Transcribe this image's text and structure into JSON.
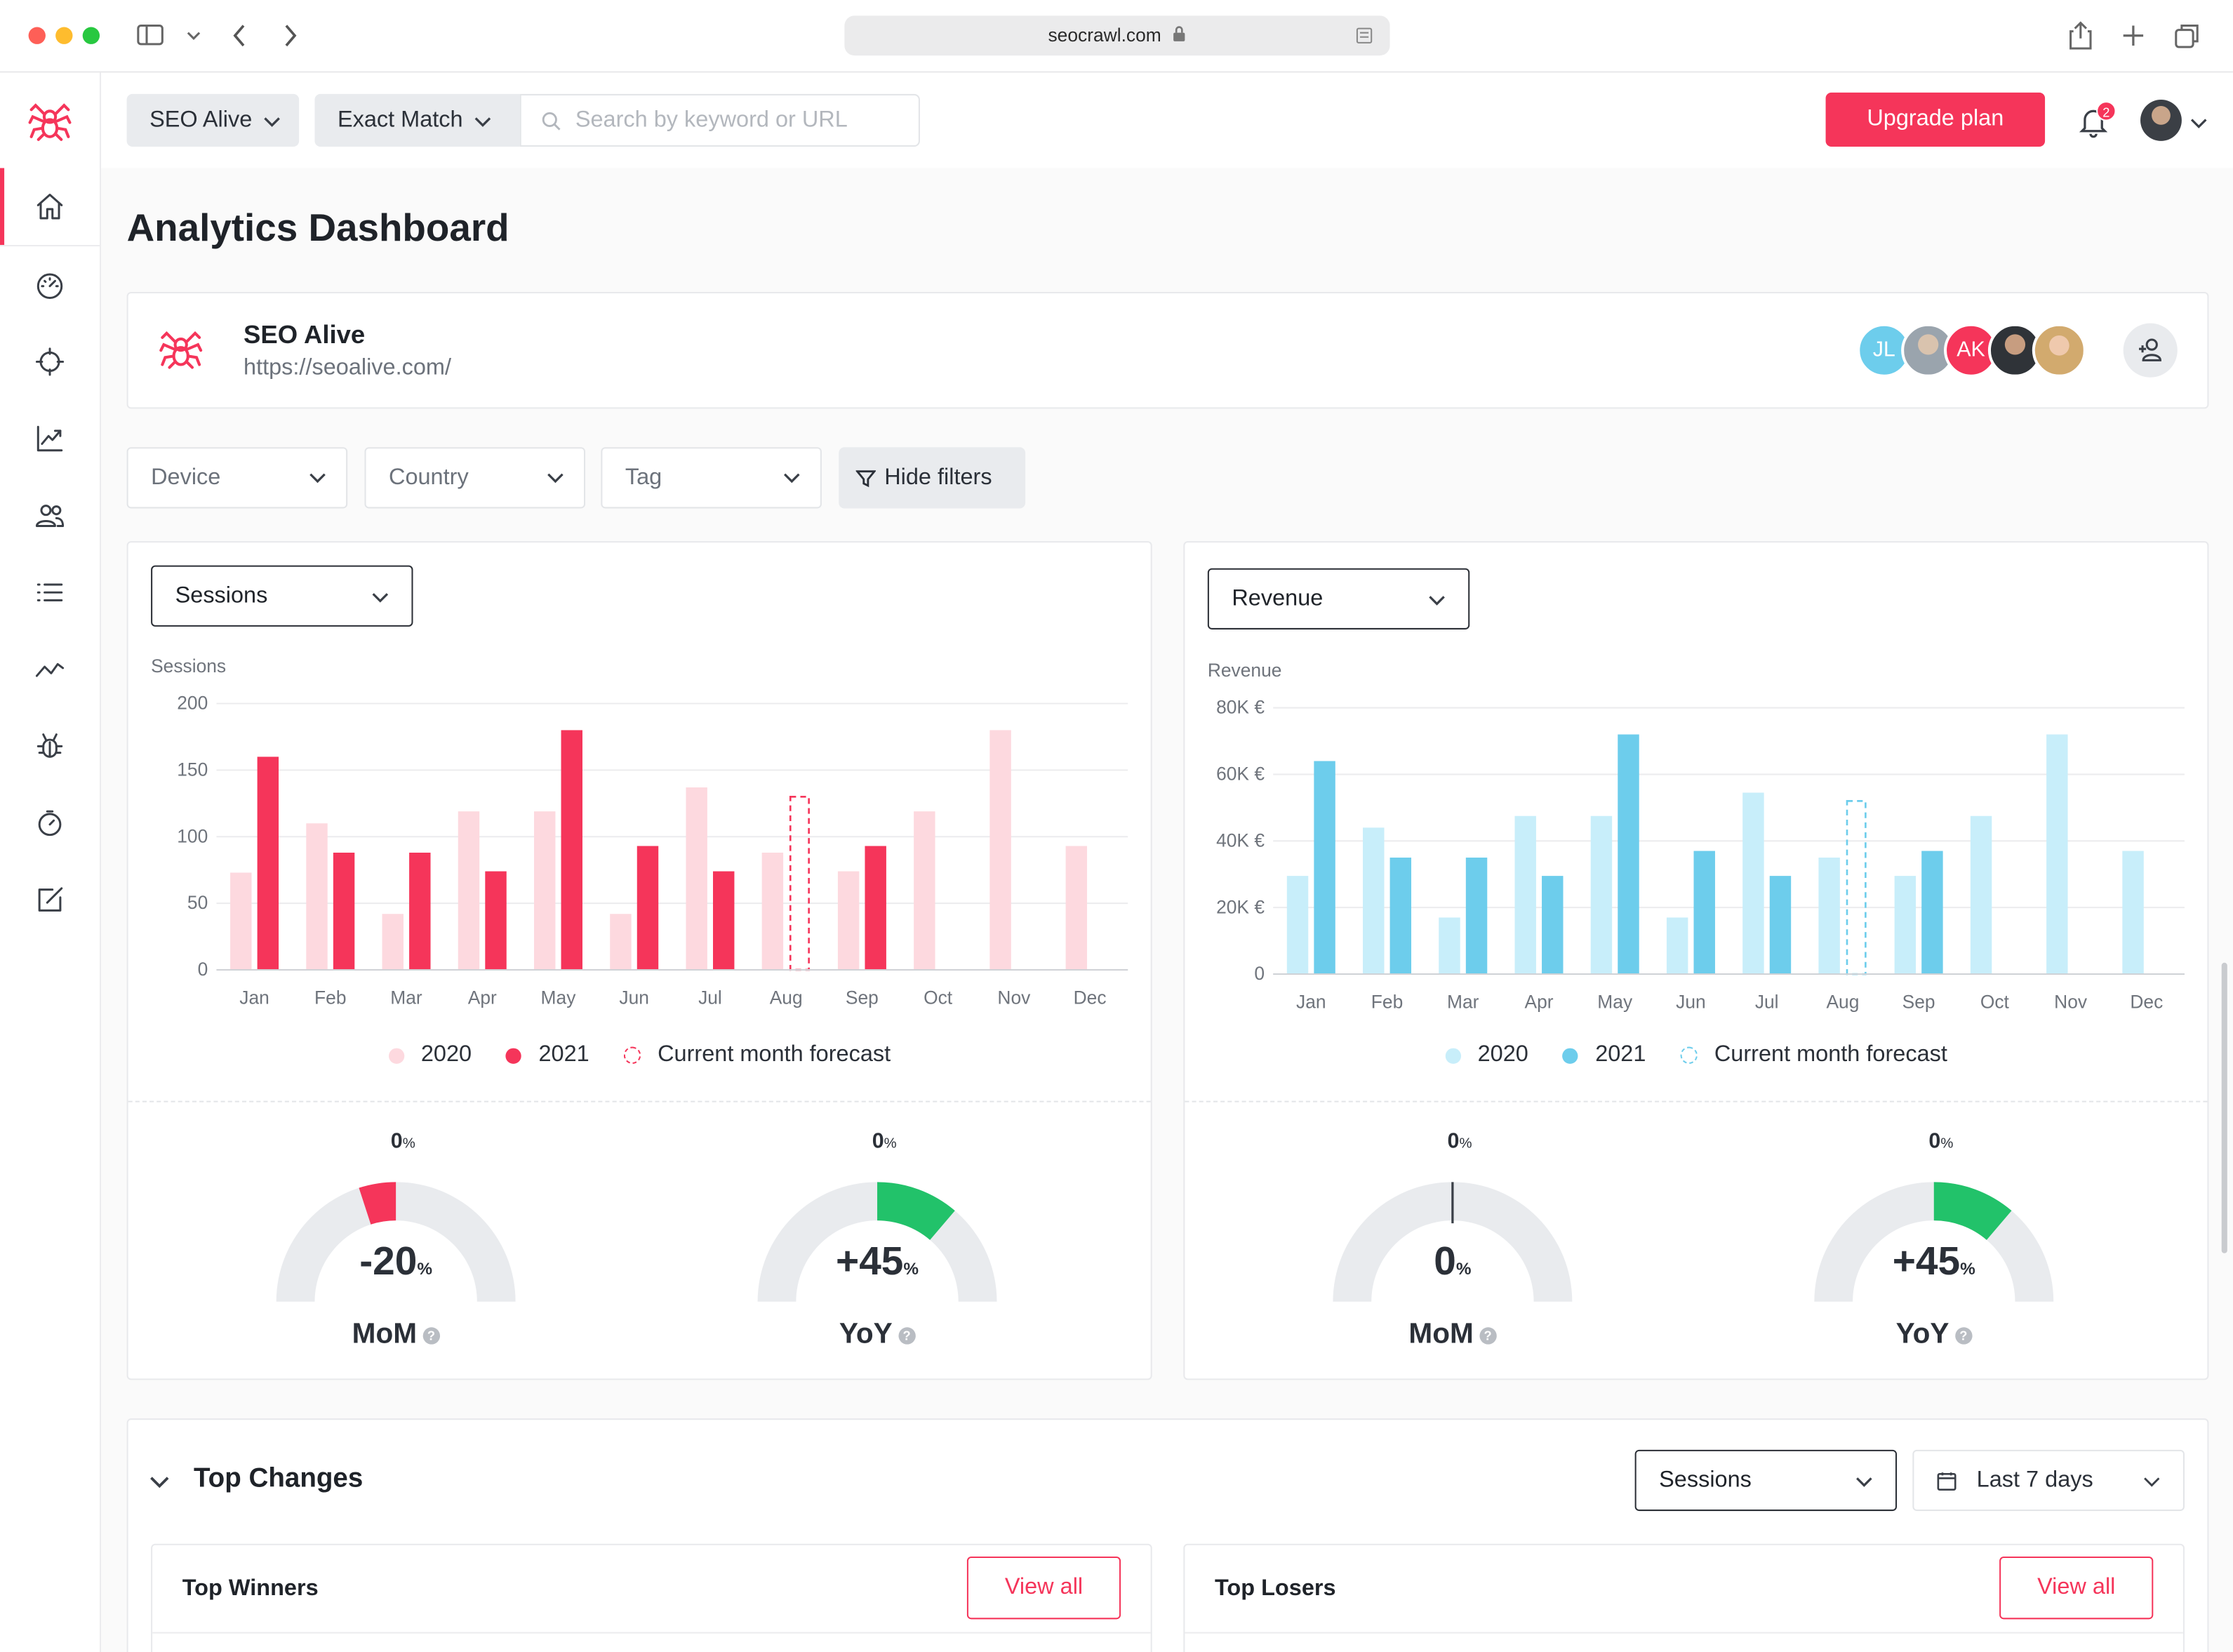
{
  "browser": {
    "url": "seocrawl.com",
    "traffic_lights": [
      "#fe5f57",
      "#febc2e",
      "#28c840"
    ]
  },
  "topbar": {
    "project_dropdown": "SEO Alive",
    "match_dropdown": "Exact Match",
    "search_placeholder": "Search by keyword or URL",
    "upgrade_label": "Upgrade plan",
    "notification_count": "2"
  },
  "sidebar": {
    "items": [
      "home-icon",
      "speedometer-icon",
      "crosshair-icon",
      "chart-line-icon",
      "users-icon",
      "list-icon",
      "trend-icon",
      "bug-icon",
      "timer-icon",
      "edit-icon"
    ],
    "active_index": 0
  },
  "page": {
    "title": "Analytics Dashboard"
  },
  "project": {
    "name": "SEO Alive",
    "url": "https://seoalive.com/",
    "avatars": [
      {
        "initials": "JL",
        "color": "#6dc9ea"
      },
      {
        "initials": "",
        "color": "#9aa4ad"
      },
      {
        "initials": "AK",
        "color": "#f5355a"
      },
      {
        "initials": "",
        "color": "#4a4f55"
      },
      {
        "initials": "",
        "color": "#c9a58a"
      }
    ]
  },
  "filters": {
    "device": "Device",
    "country": "Country",
    "tag": "Tag",
    "hide_filters": "Hide filters"
  },
  "sessions_panel": {
    "dropdown": "Sessions",
    "legend": {
      "a": "2020",
      "b": "2021",
      "forecast": "Current month forecast"
    },
    "mom": {
      "label": "MoM",
      "top": "0",
      "value": "-20",
      "fraction": -0.2
    },
    "yoy": {
      "label": "YoY",
      "top": "0",
      "value": "+45",
      "fraction": 0.45
    }
  },
  "revenue_panel": {
    "dropdown": "Revenue",
    "legend": {
      "a": "2020",
      "b": "2021",
      "forecast": "Current month forecast"
    },
    "mom": {
      "label": "MoM",
      "top": "0",
      "value": "0",
      "fraction": 0.0
    },
    "yoy": {
      "label": "YoY",
      "top": "0",
      "value": "+45",
      "fraction": 0.45
    }
  },
  "percent_sign": "%",
  "help_glyph": "?",
  "chart_data": [
    {
      "type": "bar",
      "title": "",
      "ylabel": "Sessions",
      "ylim": [
        0,
        200
      ],
      "yticks": [
        0,
        50,
        100,
        150,
        200
      ],
      "ytick_labels": [
        "0",
        "50",
        "100",
        "150",
        "200"
      ],
      "categories": [
        "Jan",
        "Feb",
        "Mar",
        "Apr",
        "May",
        "Jun",
        "Jul",
        "Aug",
        "Sep",
        "Oct",
        "Nov",
        "Dec"
      ],
      "series": [
        {
          "name": "2020",
          "color": "#fdd9df",
          "values": [
            73,
            110,
            42,
            119,
            119,
            42,
            137,
            88,
            74,
            119,
            180,
            93
          ]
        },
        {
          "name": "2021",
          "color": "#f5355a",
          "values": [
            160,
            88,
            88,
            74,
            180,
            93,
            74,
            null,
            93,
            null,
            null,
            null
          ]
        },
        {
          "name": "Current month forecast",
          "color": "#f5355a",
          "values": [
            null,
            null,
            null,
            null,
            null,
            null,
            null,
            130,
            null,
            null,
            null,
            null
          ]
        }
      ]
    },
    {
      "type": "bar",
      "title": "",
      "ylabel": "Revenue",
      "ylim": [
        0,
        80000
      ],
      "yticks": [
        0,
        20000,
        40000,
        60000,
        80000
      ],
      "ytick_labels": [
        "0",
        "20K €",
        "40K €",
        "60K €",
        "80K €"
      ],
      "categories": [
        "Jan",
        "Feb",
        "Mar",
        "Apr",
        "May",
        "Jun",
        "Jul",
        "Aug",
        "Sep",
        "Oct",
        "Nov",
        "Dec"
      ],
      "series": [
        {
          "name": "2020",
          "color": "#c8eefa",
          "values": [
            29500,
            44000,
            17000,
            47500,
            47500,
            17000,
            54500,
            35000,
            29500,
            47500,
            72000,
            37000
          ]
        },
        {
          "name": "2021",
          "color": "#6dcdec",
          "values": [
            64000,
            35000,
            35000,
            29500,
            72000,
            37000,
            29500,
            null,
            37000,
            null,
            null,
            null
          ]
        },
        {
          "name": "Current month forecast",
          "color": "#6dcdec",
          "values": [
            null,
            null,
            null,
            null,
            null,
            null,
            null,
            52000,
            null,
            null,
            null,
            null
          ]
        }
      ]
    }
  ],
  "top_changes": {
    "title": "Top Changes",
    "metric": "Sessions",
    "range": "Last 7 days",
    "winners": "Top Winners",
    "losers": "Top Losers",
    "view_all": "View all"
  }
}
